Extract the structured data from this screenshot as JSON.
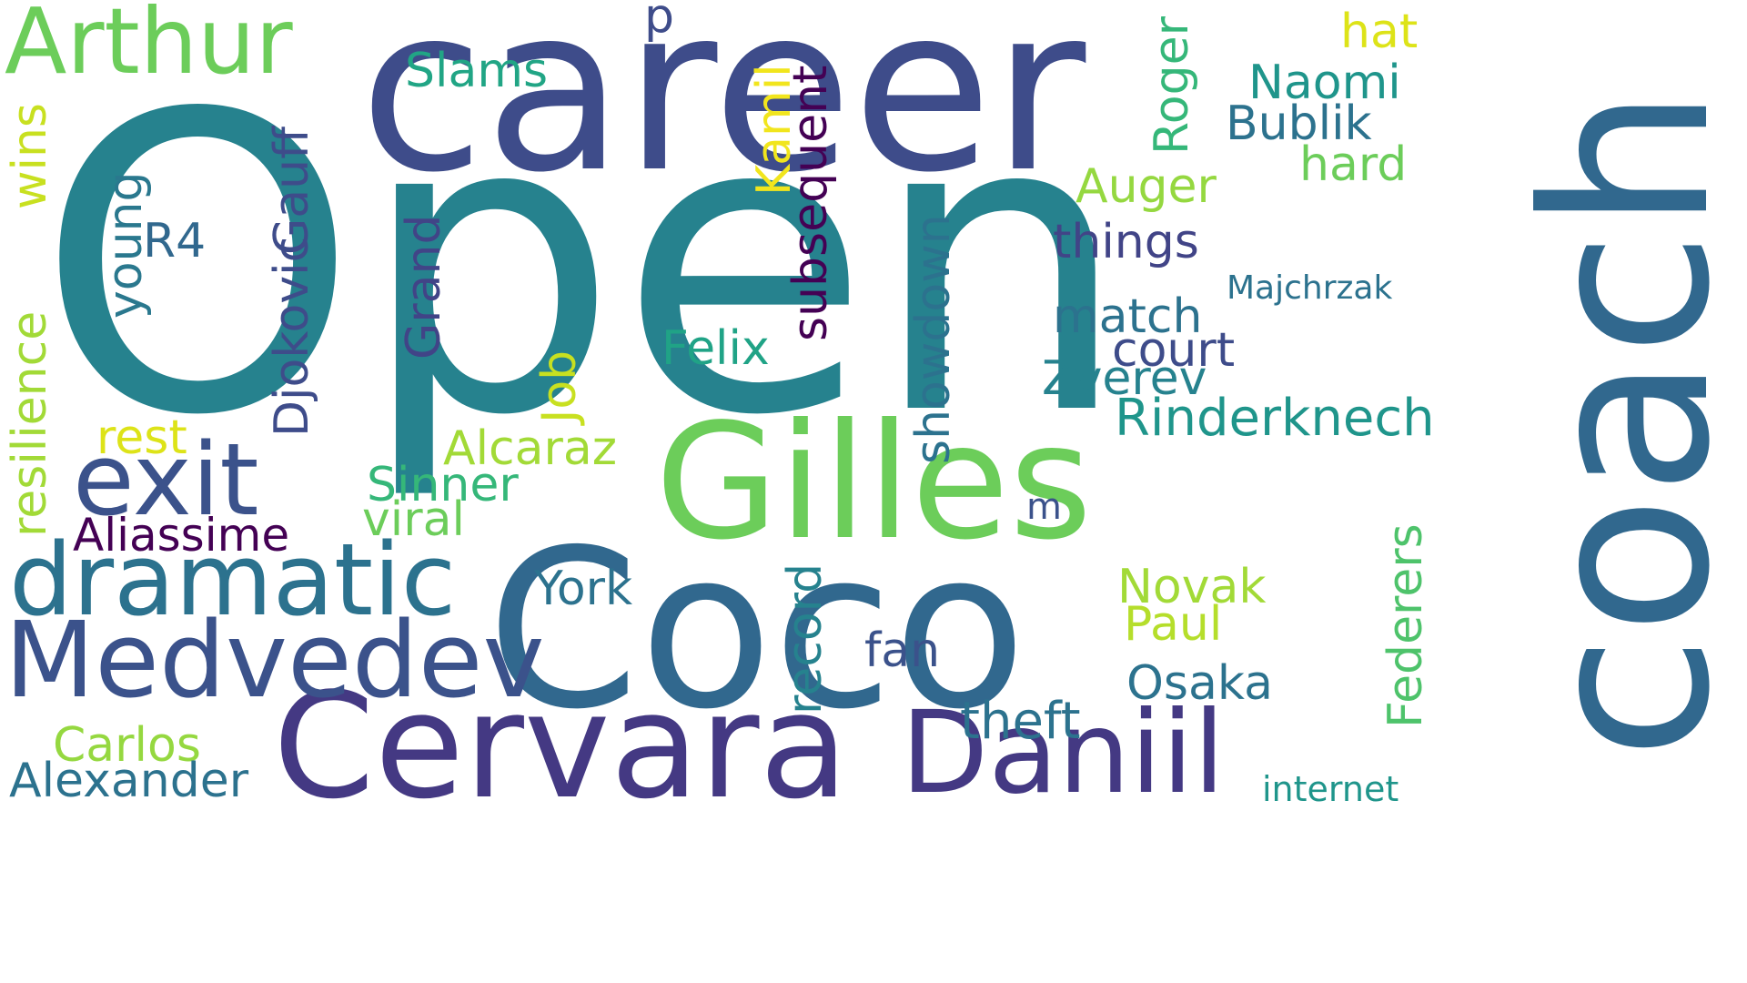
{
  "words": [
    {
      "text": "Open",
      "color": "#26828e",
      "orientation": "horizontal"
    },
    {
      "text": "career",
      "color": "#3e4c8a",
      "orientation": "horizontal"
    },
    {
      "text": "Coco",
      "color": "#31688e",
      "orientation": "horizontal"
    },
    {
      "text": "coach",
      "color": "#31688e",
      "orientation": "vertical"
    },
    {
      "text": "Gilles",
      "color": "#6ccd5a",
      "orientation": "horizontal"
    },
    {
      "text": "Cervara",
      "color": "#443983",
      "orientation": "horizontal"
    },
    {
      "text": "Daniil",
      "color": "#443983",
      "orientation": "horizontal"
    },
    {
      "text": "Medvedev",
      "color": "#3b528b",
      "orientation": "horizontal"
    },
    {
      "text": "dramatic",
      "color": "#2c728e",
      "orientation": "horizontal"
    },
    {
      "text": "exit",
      "color": "#3b528b",
      "orientation": "horizontal"
    },
    {
      "text": "Arthur",
      "color": "#6ccd5a",
      "orientation": "horizontal"
    },
    {
      "text": "Slams",
      "color": "#21a585",
      "orientation": "horizontal"
    },
    {
      "text": "p",
      "color": "#3e4c8a",
      "orientation": "horizontal"
    },
    {
      "text": "hat",
      "color": "#dde318",
      "orientation": "horizontal"
    },
    {
      "text": "Naomi",
      "color": "#1f958b",
      "orientation": "horizontal"
    },
    {
      "text": "Bublik",
      "color": "#2c728e",
      "orientation": "horizontal"
    },
    {
      "text": "hard",
      "color": "#6ccd5a",
      "orientation": "horizontal"
    },
    {
      "text": "Auger",
      "color": "#95d840",
      "orientation": "horizontal"
    },
    {
      "text": "things",
      "color": "#414487",
      "orientation": "horizontal"
    },
    {
      "text": "Majchrzak",
      "color": "#2c728e",
      "orientation": "horizontal"
    },
    {
      "text": "match",
      "color": "#2c728e",
      "orientation": "horizontal"
    },
    {
      "text": "court",
      "color": "#3e4c8a",
      "orientation": "horizontal"
    },
    {
      "text": "Zverev",
      "color": "#26828e",
      "orientation": "horizontal"
    },
    {
      "text": "Rinderknech",
      "color": "#1f958b",
      "orientation": "horizontal"
    },
    {
      "text": "Felix",
      "color": "#20a386",
      "orientation": "horizontal"
    },
    {
      "text": "Alcaraz",
      "color": "#a2da37",
      "orientation": "horizontal"
    },
    {
      "text": "Sinner",
      "color": "#35b779",
      "orientation": "horizontal"
    },
    {
      "text": "viral",
      "color": "#6ccd5a",
      "orientation": "horizontal"
    },
    {
      "text": "rest",
      "color": "#dde318",
      "orientation": "horizontal"
    },
    {
      "text": "Aliassime",
      "color": "#440154",
      "orientation": "horizontal"
    },
    {
      "text": "R4",
      "color": "#31688e",
      "orientation": "horizontal"
    },
    {
      "text": "m",
      "color": "#3b528b",
      "orientation": "horizontal"
    },
    {
      "text": "York",
      "color": "#2c728e",
      "orientation": "horizontal"
    },
    {
      "text": "Novak",
      "color": "#a2da37",
      "orientation": "horizontal"
    },
    {
      "text": "Paul",
      "color": "#b5de2b",
      "orientation": "horizontal"
    },
    {
      "text": "fan",
      "color": "#3b528b",
      "orientation": "horizontal"
    },
    {
      "text": "Osaka",
      "color": "#2c728e",
      "orientation": "horizontal"
    },
    {
      "text": "theft",
      "color": "#2c728e",
      "orientation": "horizontal"
    },
    {
      "text": "Carlos",
      "color": "#95d840",
      "orientation": "horizontal"
    },
    {
      "text": "Alexander",
      "color": "#2c728e",
      "orientation": "horizontal"
    },
    {
      "text": "internet",
      "color": "#1f958b",
      "orientation": "horizontal"
    },
    {
      "text": "resilience",
      "color": "#a2da37",
      "orientation": "vertical"
    },
    {
      "text": "wins",
      "color": "#c8e020",
      "orientation": "vertical"
    },
    {
      "text": "young",
      "color": "#2a788e",
      "orientation": "vertical"
    },
    {
      "text": "Djokovic",
      "color": "#3e4c8a",
      "orientation": "vertical"
    },
    {
      "text": "Gauff",
      "color": "#3e4c8a",
      "orientation": "vertical"
    },
    {
      "text": "Grand",
      "color": "#414487",
      "orientation": "vertical"
    },
    {
      "text": "Job",
      "color": "#c8e020",
      "orientation": "vertical"
    },
    {
      "text": "Kamil",
      "color": "#f1e51d",
      "orientation": "vertical"
    },
    {
      "text": "subsequent",
      "color": "#440154",
      "orientation": "vertical"
    },
    {
      "text": "Roger",
      "color": "#35b779",
      "orientation": "vertical"
    },
    {
      "text": "showdown",
      "color": "#2c728e",
      "orientation": "vertical"
    },
    {
      "text": "record",
      "color": "#26828e",
      "orientation": "vertical"
    },
    {
      "text": "Federers",
      "color": "#4ec36b",
      "orientation": "vertical"
    }
  ]
}
